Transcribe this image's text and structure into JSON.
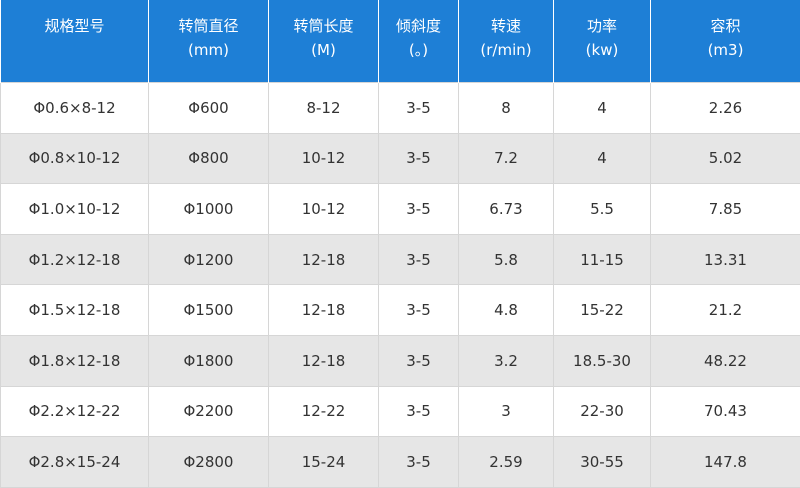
{
  "table": {
    "header": [
      {
        "title": "规格型号"
      },
      {
        "title": "转筒直径",
        "unit": "(mm)"
      },
      {
        "title": "转筒长度",
        "unit": "(M)"
      },
      {
        "title": "倾斜度",
        "unit": "(。)"
      },
      {
        "title": "转速",
        "unit": "(r/min)"
      },
      {
        "title": "功率",
        "unit": "(kw)"
      },
      {
        "title": "容积",
        "unit": "(m3)"
      }
    ],
    "rows": [
      [
        "Φ0.6×8-12",
        "Φ600",
        "8-12",
        "3-5",
        "8",
        "4",
        "2.26"
      ],
      [
        "Φ0.8×10-12",
        "Φ800",
        "10-12",
        "3-5",
        "7.2",
        "4",
        "5.02"
      ],
      [
        "Φ1.0×10-12",
        "Φ1000",
        "10-12",
        "3-5",
        "6.73",
        "5.5",
        "7.85"
      ],
      [
        "Φ1.2×12-18",
        "Φ1200",
        "12-18",
        "3-5",
        "5.8",
        "11-15",
        "13.31"
      ],
      [
        "Φ1.5×12-18",
        "Φ1500",
        "12-18",
        "3-5",
        "4.8",
        "15-22",
        "21.2"
      ],
      [
        "Φ1.8×12-18",
        "Φ1800",
        "12-18",
        "3-5",
        "3.2",
        "18.5-30",
        "48.22"
      ],
      [
        "Φ2.2×12-22",
        "Φ2200",
        "12-22",
        "3-5",
        "3",
        "22-30",
        "70.43"
      ],
      [
        "Φ2.8×15-24",
        "Φ2800",
        "15-24",
        "3-5",
        "2.59",
        "30-55",
        "147.8"
      ]
    ]
  }
}
